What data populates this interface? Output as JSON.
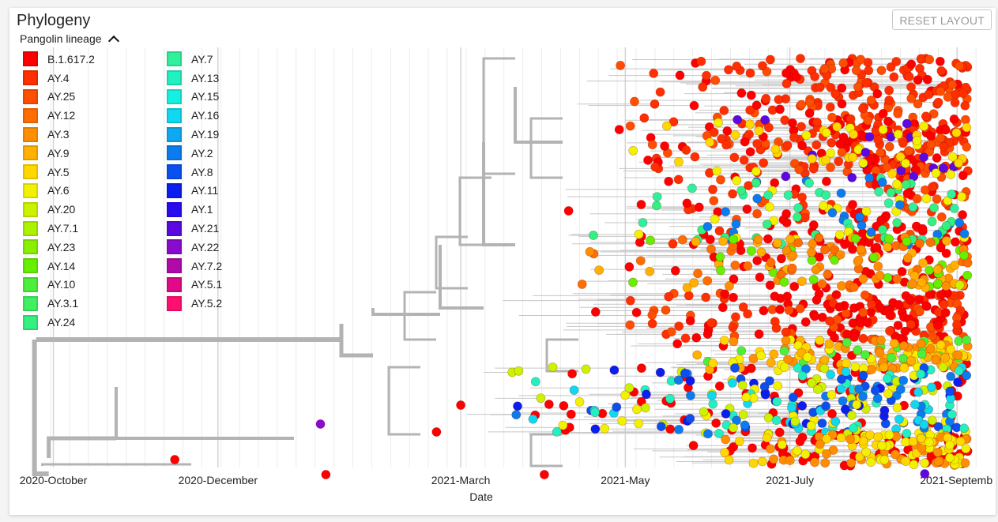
{
  "panel": {
    "title": "Phylogeny",
    "reset_label": "RESET LAYOUT",
    "legend_title": "Pangolin lineage"
  },
  "chart_data": {
    "type": "scatter",
    "title": "Phylogeny",
    "xlabel": "Date",
    "ylabel": "",
    "x_ticks": [
      "2020-October",
      "2020-December",
      "2021-March",
      "2021-May",
      "2021-July",
      "2021-Septemb"
    ],
    "xlim": [
      "2020-09-20",
      "2021-09-10"
    ],
    "grid": true,
    "legend_position": "top-left",
    "legend_title": "Pangolin lineage",
    "series": [
      {
        "name": "B.1.617.2",
        "color": "#ff0000"
      },
      {
        "name": "AY.4",
        "color": "#ff2f00"
      },
      {
        "name": "AY.25",
        "color": "#ff4e00"
      },
      {
        "name": "AY.12",
        "color": "#ff6e00"
      },
      {
        "name": "AY.3",
        "color": "#ff8f00"
      },
      {
        "name": "AY.9",
        "color": "#ffb000"
      },
      {
        "name": "AY.5",
        "color": "#ffd800"
      },
      {
        "name": "AY.6",
        "color": "#f2f200"
      },
      {
        "name": "AY.20",
        "color": "#ccf200"
      },
      {
        "name": "AY.7.1",
        "color": "#aaf200"
      },
      {
        "name": "AY.23",
        "color": "#88f000"
      },
      {
        "name": "AY.14",
        "color": "#66f000"
      },
      {
        "name": "AY.10",
        "color": "#4cf03a"
      },
      {
        "name": "AY.3.1",
        "color": "#40f060"
      },
      {
        "name": "AY.24",
        "color": "#33f080"
      },
      {
        "name": "AY.7",
        "color": "#2ff09c"
      },
      {
        "name": "AY.13",
        "color": "#22f0c0"
      },
      {
        "name": "AY.15",
        "color": "#15f0e0"
      },
      {
        "name": "AY.16",
        "color": "#10d8f0"
      },
      {
        "name": "AY.19",
        "color": "#10a8f0"
      },
      {
        "name": "AY.2",
        "color": "#0a7cf0"
      },
      {
        "name": "AY.8",
        "color": "#0a4ff0"
      },
      {
        "name": "AY.11",
        "color": "#0a1ef0"
      },
      {
        "name": "AY.1",
        "color": "#2a0aee"
      },
      {
        "name": "AY.21",
        "color": "#5a0ae0"
      },
      {
        "name": "AY.22",
        "color": "#8a0ad0"
      },
      {
        "name": "AY.7.2",
        "color": "#b00aa8"
      },
      {
        "name": "AY.5.1",
        "color": "#e00a88"
      },
      {
        "name": "AY.5.2",
        "color": "#ff1070"
      }
    ]
  }
}
